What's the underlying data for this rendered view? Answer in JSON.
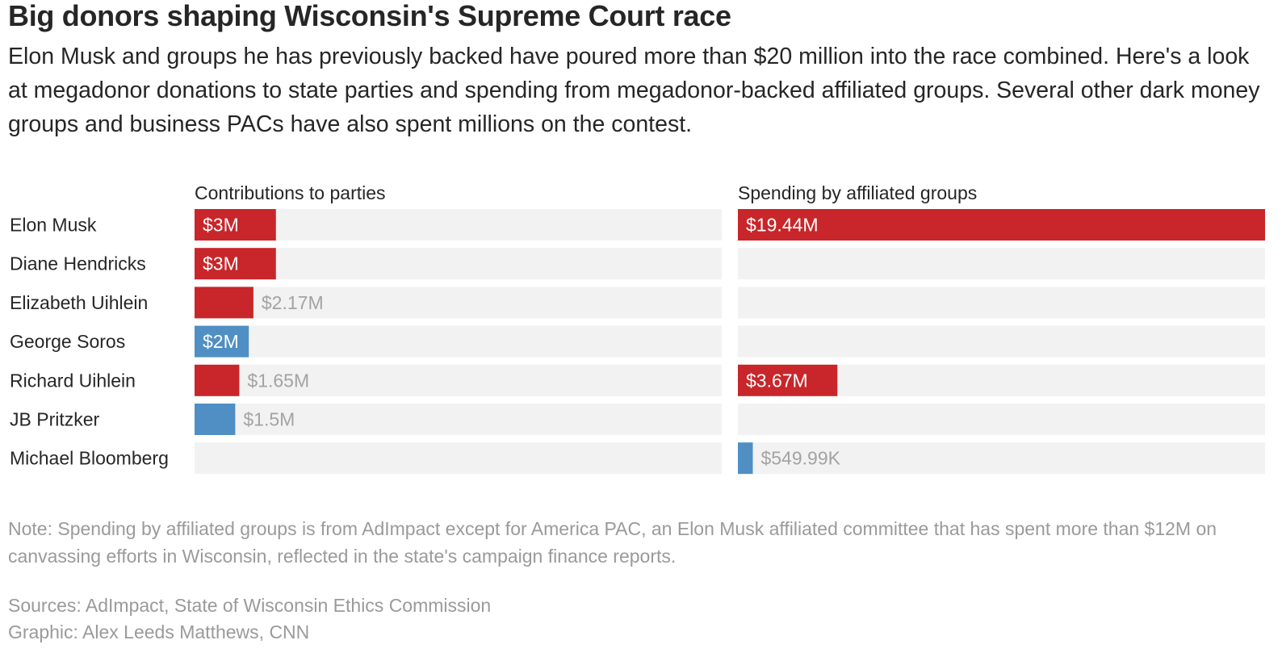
{
  "title": "Big donors shaping Wisconsin's Supreme Court race",
  "subtitle": "Elon Musk and groups he has previously backed have poured more than $20 million into the race combined. Here's a look at megadonor donations to state parties and spending from megadonor-backed affiliated groups. Several other dark money groups and business PACs have also spent millions on the contest.",
  "colors": {
    "republican": "#c8262a",
    "democrat": "#4f8fc4",
    "track": "#f2f2f2",
    "label_inside": "#ffffff",
    "label_outside": "#a3a3a3"
  },
  "chart_data": {
    "type": "bar",
    "categories": [
      "Elon Musk",
      "Diane Hendricks",
      "Elizabeth Uihlein",
      "George Soros",
      "Richard Uihlein",
      "JB Pritzker",
      "Michael Bloomberg"
    ],
    "panels": [
      {
        "title": "Contributions to parties",
        "max": 19.44,
        "values": [
          3,
          3,
          2.17,
          2,
          1.65,
          1.5,
          null
        ],
        "labels": [
          "$3M",
          "$3M",
          "$2.17M",
          "$2M",
          "$1.65M",
          "$1.5M",
          ""
        ],
        "party": [
          "republican",
          "republican",
          "republican",
          "democrat",
          "republican",
          "democrat",
          null
        ]
      },
      {
        "title": "Spending by affiliated groups",
        "max": 19.44,
        "values": [
          19.44,
          null,
          null,
          null,
          3.67,
          null,
          0.54999
        ],
        "labels": [
          "$19.44M",
          "",
          "",
          "",
          "$3.67M",
          "",
          "$549.99K"
        ],
        "party": [
          "republican",
          null,
          null,
          null,
          "republican",
          null,
          "democrat"
        ]
      }
    ]
  },
  "note": "Note: Spending by affiliated groups is from AdImpact except for America PAC, an Elon Musk affiliated committee that has spent more than $12M on canvassing efforts in Wisconsin, reflected in the state's campaign finance reports.",
  "sources": "Sources: AdImpact, State of Wisconsin Ethics Commission",
  "credit": "Graphic: Alex Leeds Matthews, CNN"
}
